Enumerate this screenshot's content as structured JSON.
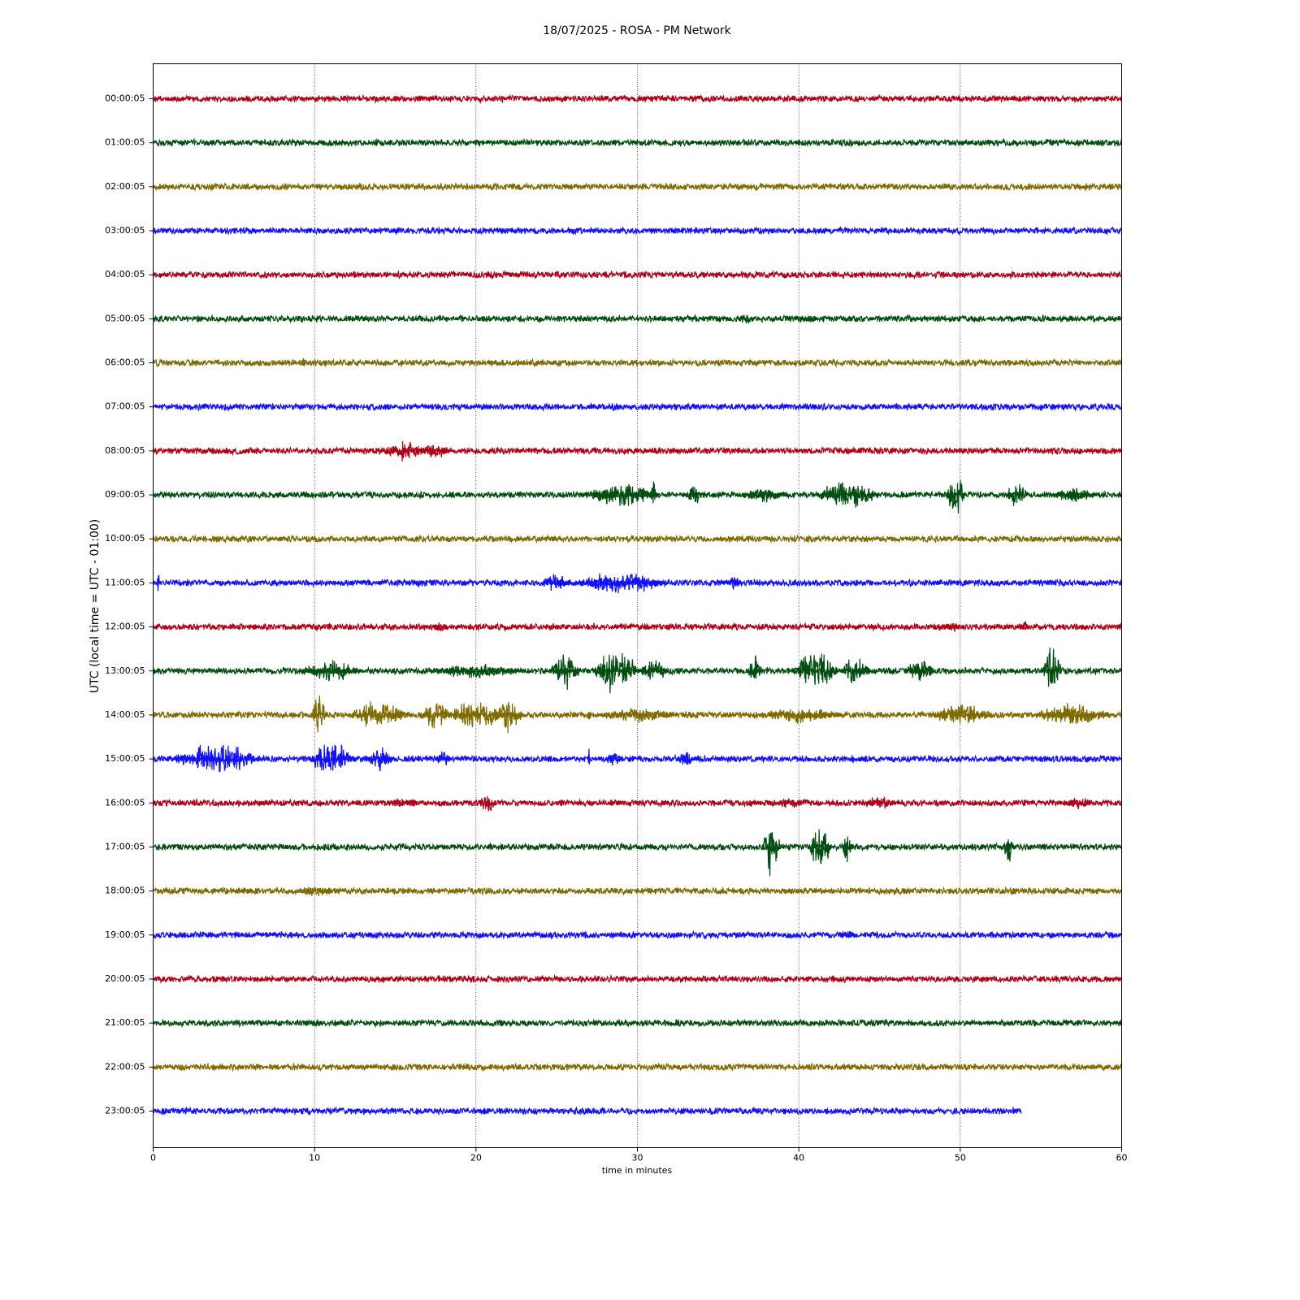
{
  "chart_data": {
    "type": "helicorder",
    "title": "18/07/2025 - ROSA - PM Network",
    "x_label": "time in minutes",
    "y_label": "UTC (local time = UTC - 01:00)",
    "xlim": [
      0,
      60
    ],
    "xticks": [
      0,
      10,
      20,
      30,
      40,
      50,
      60
    ],
    "grid": true,
    "noise": 0.08,
    "rows": [
      {
        "label": "00:00:05",
        "color": "#b00015",
        "span": [
          0,
          60
        ],
        "events": []
      },
      {
        "label": "01:00:05",
        "color": "#004d10",
        "span": [
          0,
          60
        ],
        "events": []
      },
      {
        "label": "02:00:05",
        "color": "#7f6a00",
        "span": [
          0,
          60
        ],
        "events": []
      },
      {
        "label": "03:00:05",
        "color": "#1010ff",
        "span": [
          0,
          60
        ],
        "events": []
      },
      {
        "label": "04:00:05",
        "color": "#b00015",
        "span": [
          0,
          60
        ],
        "events": []
      },
      {
        "label": "05:00:05",
        "color": "#004d10",
        "span": [
          0,
          60
        ],
        "events": [
          [
            36.7,
            1,
            0.15
          ],
          [
            40.5,
            1.5,
            0.12
          ]
        ]
      },
      {
        "label": "06:00:05",
        "color": "#7f6a00",
        "span": [
          0,
          60
        ],
        "events": [
          [
            9.3,
            0.3,
            0.15
          ]
        ]
      },
      {
        "label": "07:00:05",
        "color": "#1010ff",
        "span": [
          0,
          60
        ],
        "events": []
      },
      {
        "label": "08:00:05",
        "color": "#b00015",
        "span": [
          0,
          60
        ],
        "events": [
          [
            15.5,
            3,
            0.25
          ],
          [
            17.5,
            2,
            0.2
          ]
        ]
      },
      {
        "label": "09:00:05",
        "color": "#004d10",
        "span": [
          0,
          60
        ],
        "events": [
          [
            29,
            5,
            0.3
          ],
          [
            31,
            0.3,
            0.5
          ],
          [
            33.5,
            1,
            0.3
          ],
          [
            38,
            3,
            0.2
          ],
          [
            43,
            4,
            0.4
          ],
          [
            49.7,
            1.2,
            0.55
          ],
          [
            53.5,
            1.5,
            0.35
          ],
          [
            57,
            3,
            0.2
          ]
        ]
      },
      {
        "label": "10:00:05",
        "color": "#7f6a00",
        "span": [
          0,
          60
        ],
        "events": []
      },
      {
        "label": "11:00:05",
        "color": "#1010ff",
        "span": [
          0,
          60
        ],
        "events": [
          [
            0.3,
            0.3,
            0.35
          ],
          [
            25,
            2,
            0.25
          ],
          [
            29,
            6,
            0.3
          ],
          [
            36,
            1,
            0.2
          ]
        ]
      },
      {
        "label": "12:00:05",
        "color": "#b00015",
        "span": [
          0,
          60
        ],
        "events": [
          [
            17.8,
            1,
            0.15
          ],
          [
            49.5,
            1,
            0.15
          ],
          [
            54,
            0.5,
            0.15
          ]
        ]
      },
      {
        "label": "13:00:05",
        "color": "#004d10",
        "span": [
          0,
          60
        ],
        "events": [
          [
            11,
            4,
            0.3
          ],
          [
            20,
            6,
            0.2
          ],
          [
            25.5,
            2,
            0.5
          ],
          [
            28.7,
            3,
            0.6
          ],
          [
            31,
            2,
            0.3
          ],
          [
            37.3,
            1,
            0.4
          ],
          [
            41,
            3,
            0.5
          ],
          [
            43.5,
            2,
            0.35
          ],
          [
            47.5,
            2,
            0.3
          ],
          [
            55.7,
            1.2,
            0.7
          ]
        ]
      },
      {
        "label": "14:00:05",
        "color": "#7f6a00",
        "span": [
          0,
          60
        ],
        "events": [
          [
            10.3,
            1,
            0.55
          ],
          [
            14,
            4,
            0.35
          ],
          [
            17.5,
            2,
            0.4
          ],
          [
            20,
            4,
            0.35
          ],
          [
            22,
            2,
            0.45
          ],
          [
            27,
            0.3,
            0.2
          ],
          [
            30,
            5,
            0.2
          ],
          [
            40,
            6,
            0.2
          ],
          [
            50,
            4,
            0.3
          ],
          [
            57,
            5,
            0.3
          ]
        ]
      },
      {
        "label": "15:00:05",
        "color": "#1010ff",
        "span": [
          0,
          60
        ],
        "events": [
          [
            4,
            6,
            0.4
          ],
          [
            11,
            3,
            0.45
          ],
          [
            14,
            2,
            0.3
          ],
          [
            18,
            1,
            0.25
          ],
          [
            27,
            0.2,
            0.3
          ],
          [
            28.5,
            1,
            0.2
          ],
          [
            33,
            1,
            0.2
          ]
        ]
      },
      {
        "label": "16:00:05",
        "color": "#b00015",
        "span": [
          0,
          60
        ],
        "events": [
          [
            15.5,
            2,
            0.15
          ],
          [
            20.7,
            1,
            0.35
          ],
          [
            39.5,
            2,
            0.15
          ],
          [
            45,
            2,
            0.18
          ],
          [
            57.3,
            2,
            0.15
          ]
        ]
      },
      {
        "label": "17:00:05",
        "color": "#004d10",
        "span": [
          0,
          60
        ],
        "events": [
          [
            38.3,
            1.2,
            0.7
          ],
          [
            41.3,
            1.5,
            0.6
          ],
          [
            43,
            0.6,
            0.4
          ],
          [
            53,
            0.8,
            0.4
          ]
        ]
      },
      {
        "label": "18:00:05",
        "color": "#7f6a00",
        "span": [
          0,
          60
        ],
        "events": [
          [
            10,
            2,
            0.15
          ]
        ]
      },
      {
        "label": "19:00:05",
        "color": "#1010ff",
        "span": [
          0,
          60
        ],
        "events": [
          [
            43,
            1,
            0.15
          ]
        ]
      },
      {
        "label": "20:00:05",
        "color": "#b00015",
        "span": [
          0,
          60
        ],
        "events": []
      },
      {
        "label": "21:00:05",
        "color": "#004d10",
        "span": [
          0,
          60
        ],
        "events": []
      },
      {
        "label": "22:00:05",
        "color": "#7f6a00",
        "span": [
          0,
          60
        ],
        "events": []
      },
      {
        "label": "23:00:05",
        "color": "#1010ff",
        "span": [
          0,
          53.8
        ],
        "events": []
      }
    ]
  }
}
